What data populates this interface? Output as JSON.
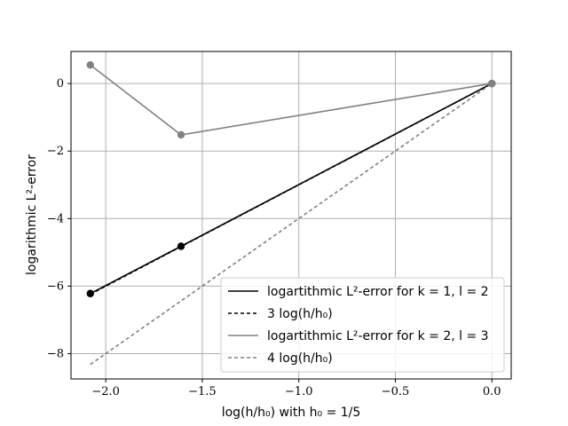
{
  "chart_data": {
    "type": "line",
    "xlabel": "log(h/h₀) with h₀ = 1/5",
    "ylabel": "logarithmic L²-error",
    "xlim": [
      -2.18,
      0.1
    ],
    "ylim": [
      -8.75,
      0.95
    ],
    "xticks": [
      -2.0,
      -1.5,
      -1.0,
      -0.5,
      0.0
    ],
    "xtick_labels": [
      "−2.0",
      "−1.5",
      "−1.0",
      "−0.5",
      "0.0"
    ],
    "yticks": [
      0,
      -2,
      -4,
      -6,
      -8
    ],
    "ytick_labels": [
      "0",
      "−2",
      "−4",
      "−6",
      "−8"
    ],
    "grid": true,
    "legend_position": "lower-right",
    "series": [
      {
        "name": "logartithmic L²-error for k = 1, l = 2",
        "color": "#000000",
        "style": "solid",
        "markers": true,
        "x": [
          -2.08,
          -1.61,
          0.0
        ],
        "y": [
          -6.22,
          -4.82,
          0.0
        ]
      },
      {
        "name": "3 log(h/h₀)",
        "color": "#000000",
        "style": "dashed",
        "markers": false,
        "x": [
          -2.08,
          0.0
        ],
        "y": [
          -6.24,
          0.0
        ]
      },
      {
        "name": "logartithmic L²-error for k = 2, l = 3",
        "color": "#808080",
        "style": "solid",
        "markers": true,
        "x": [
          -2.08,
          -1.61,
          0.0
        ],
        "y": [
          0.55,
          -1.52,
          0.0
        ]
      },
      {
        "name": "4 log(h/h₀)",
        "color": "#808080",
        "style": "dashed",
        "markers": false,
        "x": [
          -2.08,
          0.0
        ],
        "y": [
          -8.32,
          0.0
        ]
      }
    ]
  }
}
